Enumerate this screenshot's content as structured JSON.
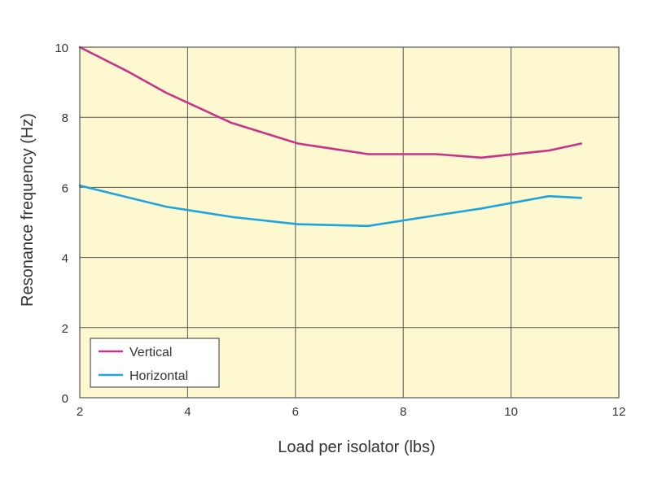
{
  "chart_data": {
    "type": "line",
    "title": "",
    "xlabel": "Load per isolator (lbs)",
    "ylabel": "Resonance frequency (Hz)",
    "xlim": [
      2,
      12
    ],
    "ylim": [
      0,
      10
    ],
    "xticks": [
      2,
      4,
      6,
      8,
      10,
      12
    ],
    "yticks": [
      0,
      2,
      4,
      6,
      8,
      10
    ],
    "grid": true,
    "legend_position": "bottom-left",
    "colors": {
      "plot_background": "#fdf8d0",
      "grid": "#555555",
      "frame": "#555555"
    },
    "series": [
      {
        "name": "Vertical",
        "color": "#c8338a",
        "x": [
          2.0,
          2.9,
          3.6,
          4.8,
          6.05,
          7.35,
          8.6,
          9.45,
          10.7,
          11.3
        ],
        "y": [
          10.0,
          9.3,
          8.7,
          7.85,
          7.25,
          6.95,
          6.95,
          6.85,
          7.05,
          7.25
        ]
      },
      {
        "name": "Horizontal",
        "color": "#1ea4dc",
        "x": [
          2.0,
          3.6,
          4.85,
          6.05,
          7.35,
          8.6,
          9.45,
          10.7,
          11.3
        ],
        "y": [
          6.05,
          5.45,
          5.15,
          4.95,
          4.9,
          5.2,
          5.4,
          5.75,
          5.7
        ]
      }
    ]
  }
}
